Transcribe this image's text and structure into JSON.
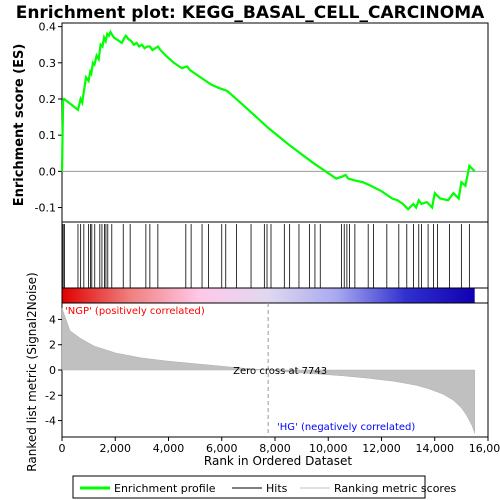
{
  "chart_data": {
    "type": "line",
    "title": "Enrichment plot: KEGG_BASAL_CELL_CARCINOMA",
    "es_panel": {
      "ylabel": "Enrichment score (ES)",
      "ylim": [
        -0.14,
        0.41
      ],
      "yticks": [
        -0.1,
        0.0,
        0.1,
        0.2,
        0.3,
        0.4
      ],
      "ytick_labels": [
        "-0.1",
        "0.0",
        "0.1",
        "0.2",
        "0.3",
        "0.4"
      ],
      "grid": false,
      "series": [
        {
          "name": "Enrichment profile",
          "color": "#00ff00",
          "x": [
            0,
            40,
            80,
            600,
            700,
            760,
            840,
            900,
            1000,
            1060,
            1100,
            1160,
            1220,
            1300,
            1380,
            1450,
            1520,
            1580,
            1640,
            1700,
            1760,
            1820,
            1900,
            1950,
            2050,
            2150,
            2250,
            2350,
            2400,
            2500,
            2600,
            2700,
            2800,
            2900,
            3000,
            3100,
            3200,
            3300,
            3400,
            3500,
            3600,
            3700,
            3900,
            4200,
            4500,
            4700,
            4800,
            4900,
            5100,
            5300,
            5600,
            5900,
            6100,
            6200,
            6400,
            7000,
            7743,
            8500,
            9400,
            10000,
            10300,
            10500,
            10650,
            10750,
            11000,
            11300,
            11600,
            12000,
            12200,
            12400,
            12600,
            12800,
            13000,
            13200,
            13300,
            13400,
            13500,
            13700,
            13900,
            14000,
            14200,
            14500,
            14700,
            14900,
            15000,
            15150,
            15300,
            15500
          ],
          "y": [
            0.0,
            0.195,
            0.2,
            0.17,
            0.2,
            0.19,
            0.23,
            0.26,
            0.25,
            0.275,
            0.27,
            0.3,
            0.295,
            0.32,
            0.31,
            0.35,
            0.345,
            0.37,
            0.36,
            0.38,
            0.375,
            0.385,
            0.375,
            0.37,
            0.365,
            0.36,
            0.355,
            0.37,
            0.375,
            0.365,
            0.36,
            0.35,
            0.355,
            0.345,
            0.35,
            0.34,
            0.345,
            0.345,
            0.335,
            0.34,
            0.345,
            0.335,
            0.32,
            0.3,
            0.285,
            0.29,
            0.28,
            0.275,
            0.265,
            0.255,
            0.24,
            0.23,
            0.225,
            0.222,
            0.21,
            0.17,
            0.12,
            0.075,
            0.025,
            -0.005,
            -0.02,
            -0.015,
            -0.01,
            -0.02,
            -0.025,
            -0.03,
            -0.04,
            -0.055,
            -0.065,
            -0.075,
            -0.08,
            -0.09,
            -0.105,
            -0.09,
            -0.1,
            -0.08,
            -0.09,
            -0.085,
            -0.1,
            -0.06,
            -0.075,
            -0.08,
            -0.06,
            -0.075,
            -0.03,
            -0.04,
            0.015,
            0.0
          ]
        }
      ]
    },
    "hits_panel": {
      "series_name": "Hits",
      "hit_ranks": [
        15,
        45,
        90,
        600,
        700,
        820,
        1000,
        1070,
        1120,
        1230,
        1420,
        1500,
        1600,
        1650,
        1720,
        1870,
        2300,
        2560,
        3150,
        3300,
        3600,
        4650,
        4850,
        5260,
        5500,
        6000,
        6150,
        6550,
        7100,
        7600,
        7700,
        7850,
        8350,
        8550,
        8900,
        9300,
        9500,
        9700,
        10500,
        10600,
        10700,
        10800,
        11000,
        11500,
        11700,
        12200,
        12650,
        12950,
        13200,
        13400,
        13500,
        13750,
        13950,
        14100,
        14550,
        15000,
        15300
      ],
      "colorbar_stops": [
        "#e00000",
        "#f08080",
        "#ffc8e8",
        "#e0d8f0",
        "#a8a8f0",
        "#3030d0",
        "#1000b0"
      ]
    },
    "metric_panel": {
      "ylabel": "Ranked list metric (Signal2Noise)",
      "ylim": [
        -5.3,
        5.3
      ],
      "yticks": [
        -4,
        -2,
        0,
        2,
        4
      ],
      "ytick_labels": [
        "-4",
        "-2",
        "0",
        "2",
        "4"
      ],
      "series_name": "Ranking metric scores",
      "x": [
        0,
        300,
        700,
        1200,
        2000,
        3000,
        4000,
        5000,
        6000,
        7000,
        7743,
        8500,
        9500,
        10500,
        11500,
        12500,
        13300,
        13800,
        14300,
        14700,
        15000,
        15200,
        15400,
        15500
      ],
      "y": [
        4.9,
        3.1,
        2.5,
        1.9,
        1.35,
        0.95,
        0.7,
        0.5,
        0.3,
        0.1,
        0.0,
        -0.15,
        -0.3,
        -0.45,
        -0.65,
        -0.9,
        -1.2,
        -1.5,
        -1.9,
        -2.4,
        -3.0,
        -3.6,
        -4.4,
        -5.0
      ],
      "zero_cross_label": "Zero cross at 7743",
      "zero_cross_rank": 7743,
      "positive_label": "'NGP' (positively correlated)",
      "negative_label": "'HG' (negatively correlated)",
      "positive_color": "#ff0000",
      "negative_color": "#0000ff"
    },
    "x_axis": {
      "xlabel": "Rank in Ordered Dataset",
      "xlim": [
        0,
        16000
      ],
      "xticks": [
        0,
        2000,
        4000,
        6000,
        8000,
        10000,
        12000,
        14000,
        16000
      ],
      "xtick_labels": [
        "0",
        "2,000",
        "4,000",
        "6,000",
        "8,000",
        "10,000",
        "12,000",
        "14,000",
        "16,000"
      ],
      "max_rank": 15500
    },
    "legend": {
      "placement": "bottom",
      "items": [
        {
          "label": "Enrichment profile",
          "color": "#00ff00",
          "kind": "thick-line"
        },
        {
          "label": "Hits",
          "color": "#000000",
          "kind": "line"
        },
        {
          "label": "Ranking metric scores",
          "color": "#c0c0c0",
          "kind": "line"
        }
      ]
    }
  }
}
